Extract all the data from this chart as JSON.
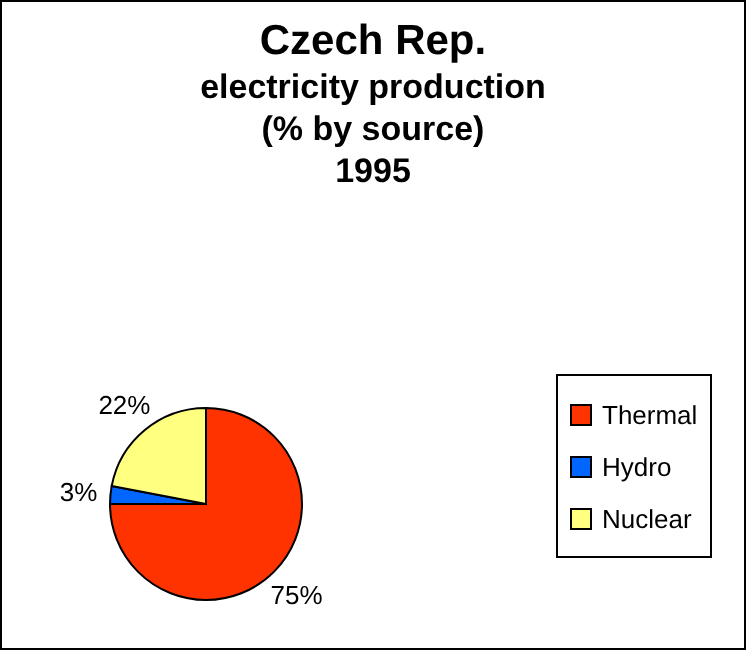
{
  "chart_data": {
    "type": "pie",
    "title": "Czech Rep.",
    "subtitle": "electricity production\n(% by source)\n1995",
    "categories": [
      "Thermal",
      "Hydro",
      "Nuclear"
    ],
    "values": [
      75,
      3,
      22
    ],
    "value_labels": [
      "75%",
      "3%",
      "22%"
    ],
    "colors": [
      "#ff3300",
      "#0066ff",
      "#ffff80"
    ],
    "legend": "right"
  }
}
